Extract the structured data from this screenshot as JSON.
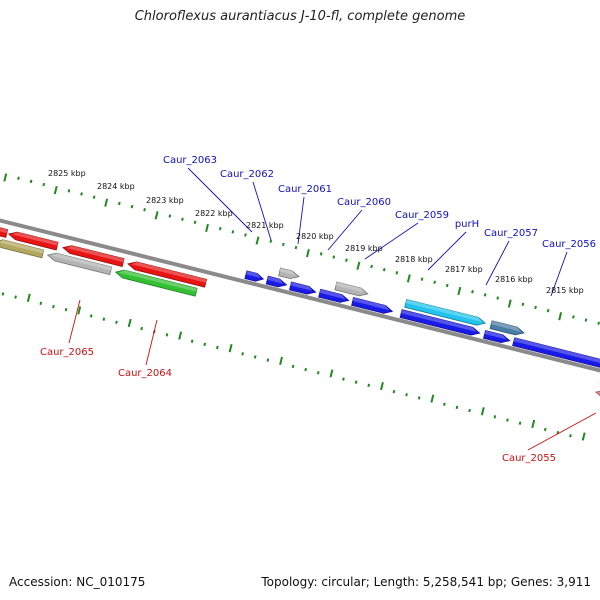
{
  "title": "Chloroflexus aurantiacus J-10-fl, complete genome",
  "footer": {
    "accession": "Accession: NC_010175",
    "topology": "Topology: circular; Length: 5,258,541 bp; Genes: 3,911"
  },
  "colors": {
    "backbone": "#8a8a8a",
    "tick": "#1f8a1f",
    "label_forward": "#1010c0",
    "label_reverse": "#cc1010",
    "gene_blue": "#1a1ae6",
    "gene_cyan": "#22c4ee",
    "gene_steel": "#4a7ca8",
    "gene_gray": "#b4b4b4",
    "gene_red": "#e81414",
    "gene_olive": "#b3a860",
    "gene_green": "#33c033",
    "gene_pink": "#f08a8a"
  },
  "scale_labels": [
    "2825 kbp",
    "2824 kbp",
    "2823 kbp",
    "2822 kbp",
    "2821 kbp",
    "2820 kbp",
    "2819 kbp",
    "2818 kbp",
    "2817 kbp",
    "2816 kbp",
    "2815 kbp"
  ],
  "forward_labels": [
    "Caur_2063",
    "Caur_2062",
    "Caur_2061",
    "Caur_2060",
    "Caur_2059",
    "purH",
    "Caur_2057",
    "Caur_2056"
  ],
  "reverse_labels": [
    "Caur_2065",
    "Caur_2064",
    "Caur_2055"
  ]
}
